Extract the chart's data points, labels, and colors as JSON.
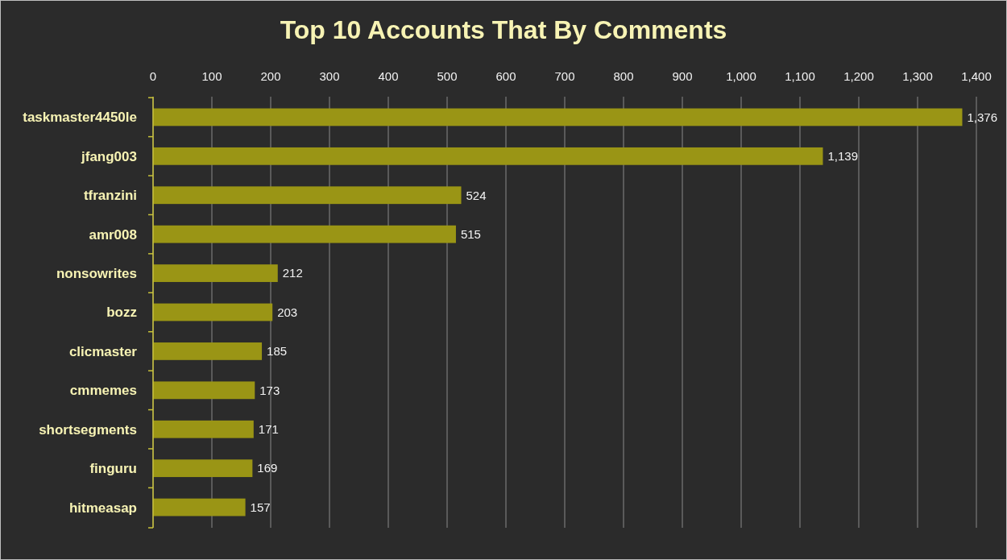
{
  "chart_data": {
    "type": "bar",
    "orientation": "horizontal",
    "title": "Top 10 Accounts That By Comments",
    "categories": [
      "taskmaster4450le",
      "jfang003",
      "tfranzini",
      "amr008",
      "nonsowrites",
      "bozz",
      "clicmaster",
      "cmmemes",
      "shortsegments",
      "finguru",
      "hitmeasap"
    ],
    "values": [
      1376,
      1139,
      524,
      515,
      212,
      203,
      185,
      173,
      171,
      169,
      157
    ],
    "value_labels": [
      "1,376",
      "1,139",
      "524",
      "515",
      "212",
      "203",
      "185",
      "173",
      "171",
      "169",
      "157"
    ],
    "color": "#9a9515",
    "xlim": [
      0,
      1400
    ],
    "xticks": [
      0,
      100,
      200,
      300,
      400,
      500,
      600,
      700,
      800,
      900,
      {
        "value": 1000,
        "label": "1,000"
      },
      {
        "value": 1100,
        "label": "1,100"
      },
      {
        "value": 1200,
        "label": "1,200"
      },
      {
        "value": 1300,
        "label": "1,300"
      },
      {
        "value": 1400,
        "label": "1,400"
      }
    ],
    "grid": "x"
  }
}
